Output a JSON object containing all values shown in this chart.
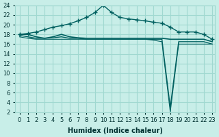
{
  "xlabel": "Humidex (Indice chaleur)",
  "ylabel": "",
  "background_color": "#c8eee8",
  "grid_color": "#a0d8d0",
  "line_color": "#006060",
  "xlim": [
    0,
    23
  ],
  "ylim": [
    2,
    24
  ],
  "xticks": [
    0,
    1,
    2,
    3,
    4,
    5,
    6,
    7,
    8,
    9,
    10,
    11,
    12,
    13,
    14,
    15,
    16,
    17,
    18,
    19,
    20,
    21,
    22,
    23
  ],
  "yticks": [
    2,
    4,
    6,
    8,
    10,
    12,
    14,
    16,
    18,
    20,
    22,
    24
  ],
  "series1_x": [
    0,
    1,
    2,
    3,
    4,
    5,
    6,
    7,
    8,
    9,
    10,
    11,
    12,
    13,
    14,
    15,
    16,
    17,
    18,
    19,
    20,
    21,
    22,
    23
  ],
  "series1_y": [
    18.0,
    18.2,
    18.5,
    19.0,
    19.5,
    19.8,
    20.2,
    20.8,
    21.5,
    22.5,
    24.0,
    22.5,
    21.5,
    21.2,
    21.0,
    20.8,
    20.5,
    20.3,
    19.5,
    18.5,
    18.5,
    18.5,
    18.0,
    17.0
  ],
  "series2_x": [
    0,
    1,
    2,
    3,
    4,
    5,
    6,
    7,
    8,
    9,
    10,
    11,
    12,
    13,
    14,
    15,
    16,
    17,
    18,
    19,
    20,
    21,
    22,
    23
  ],
  "series2_y": [
    18.0,
    18.0,
    17.5,
    17.2,
    17.5,
    18.0,
    17.5,
    17.3,
    17.2,
    17.2,
    17.2,
    17.2,
    17.2,
    17.2,
    17.2,
    17.2,
    17.2,
    17.2,
    17.0,
    17.0,
    17.0,
    17.0,
    17.0,
    16.5
  ],
  "series3_x": [
    0,
    1,
    2,
    3,
    4,
    5,
    6,
    7,
    8,
    9,
    10,
    11,
    12,
    13,
    14,
    15,
    16,
    17,
    18,
    19,
    20,
    21,
    22,
    23
  ],
  "series3_y": [
    17.8,
    17.5,
    17.2,
    17.2,
    17.3,
    17.5,
    17.2,
    17.2,
    17.0,
    17.0,
    17.0,
    17.0,
    17.0,
    17.0,
    17.0,
    17.0,
    17.0,
    17.0,
    3.0,
    16.5,
    16.5,
    16.5,
    16.5,
    16.0
  ],
  "series4_x": [
    0,
    1,
    2,
    3,
    4,
    5,
    6,
    7,
    8,
    9,
    10,
    11,
    12,
    13,
    14,
    15,
    16,
    17,
    18,
    19,
    20,
    21,
    22,
    23
  ],
  "series4_y": [
    17.5,
    17.2,
    17.0,
    17.0,
    17.0,
    17.0,
    17.0,
    17.0,
    17.0,
    17.0,
    17.0,
    17.0,
    17.0,
    17.0,
    17.0,
    17.0,
    16.8,
    16.5,
    2.0,
    16.0,
    16.0,
    16.0,
    16.0,
    16.0
  ]
}
